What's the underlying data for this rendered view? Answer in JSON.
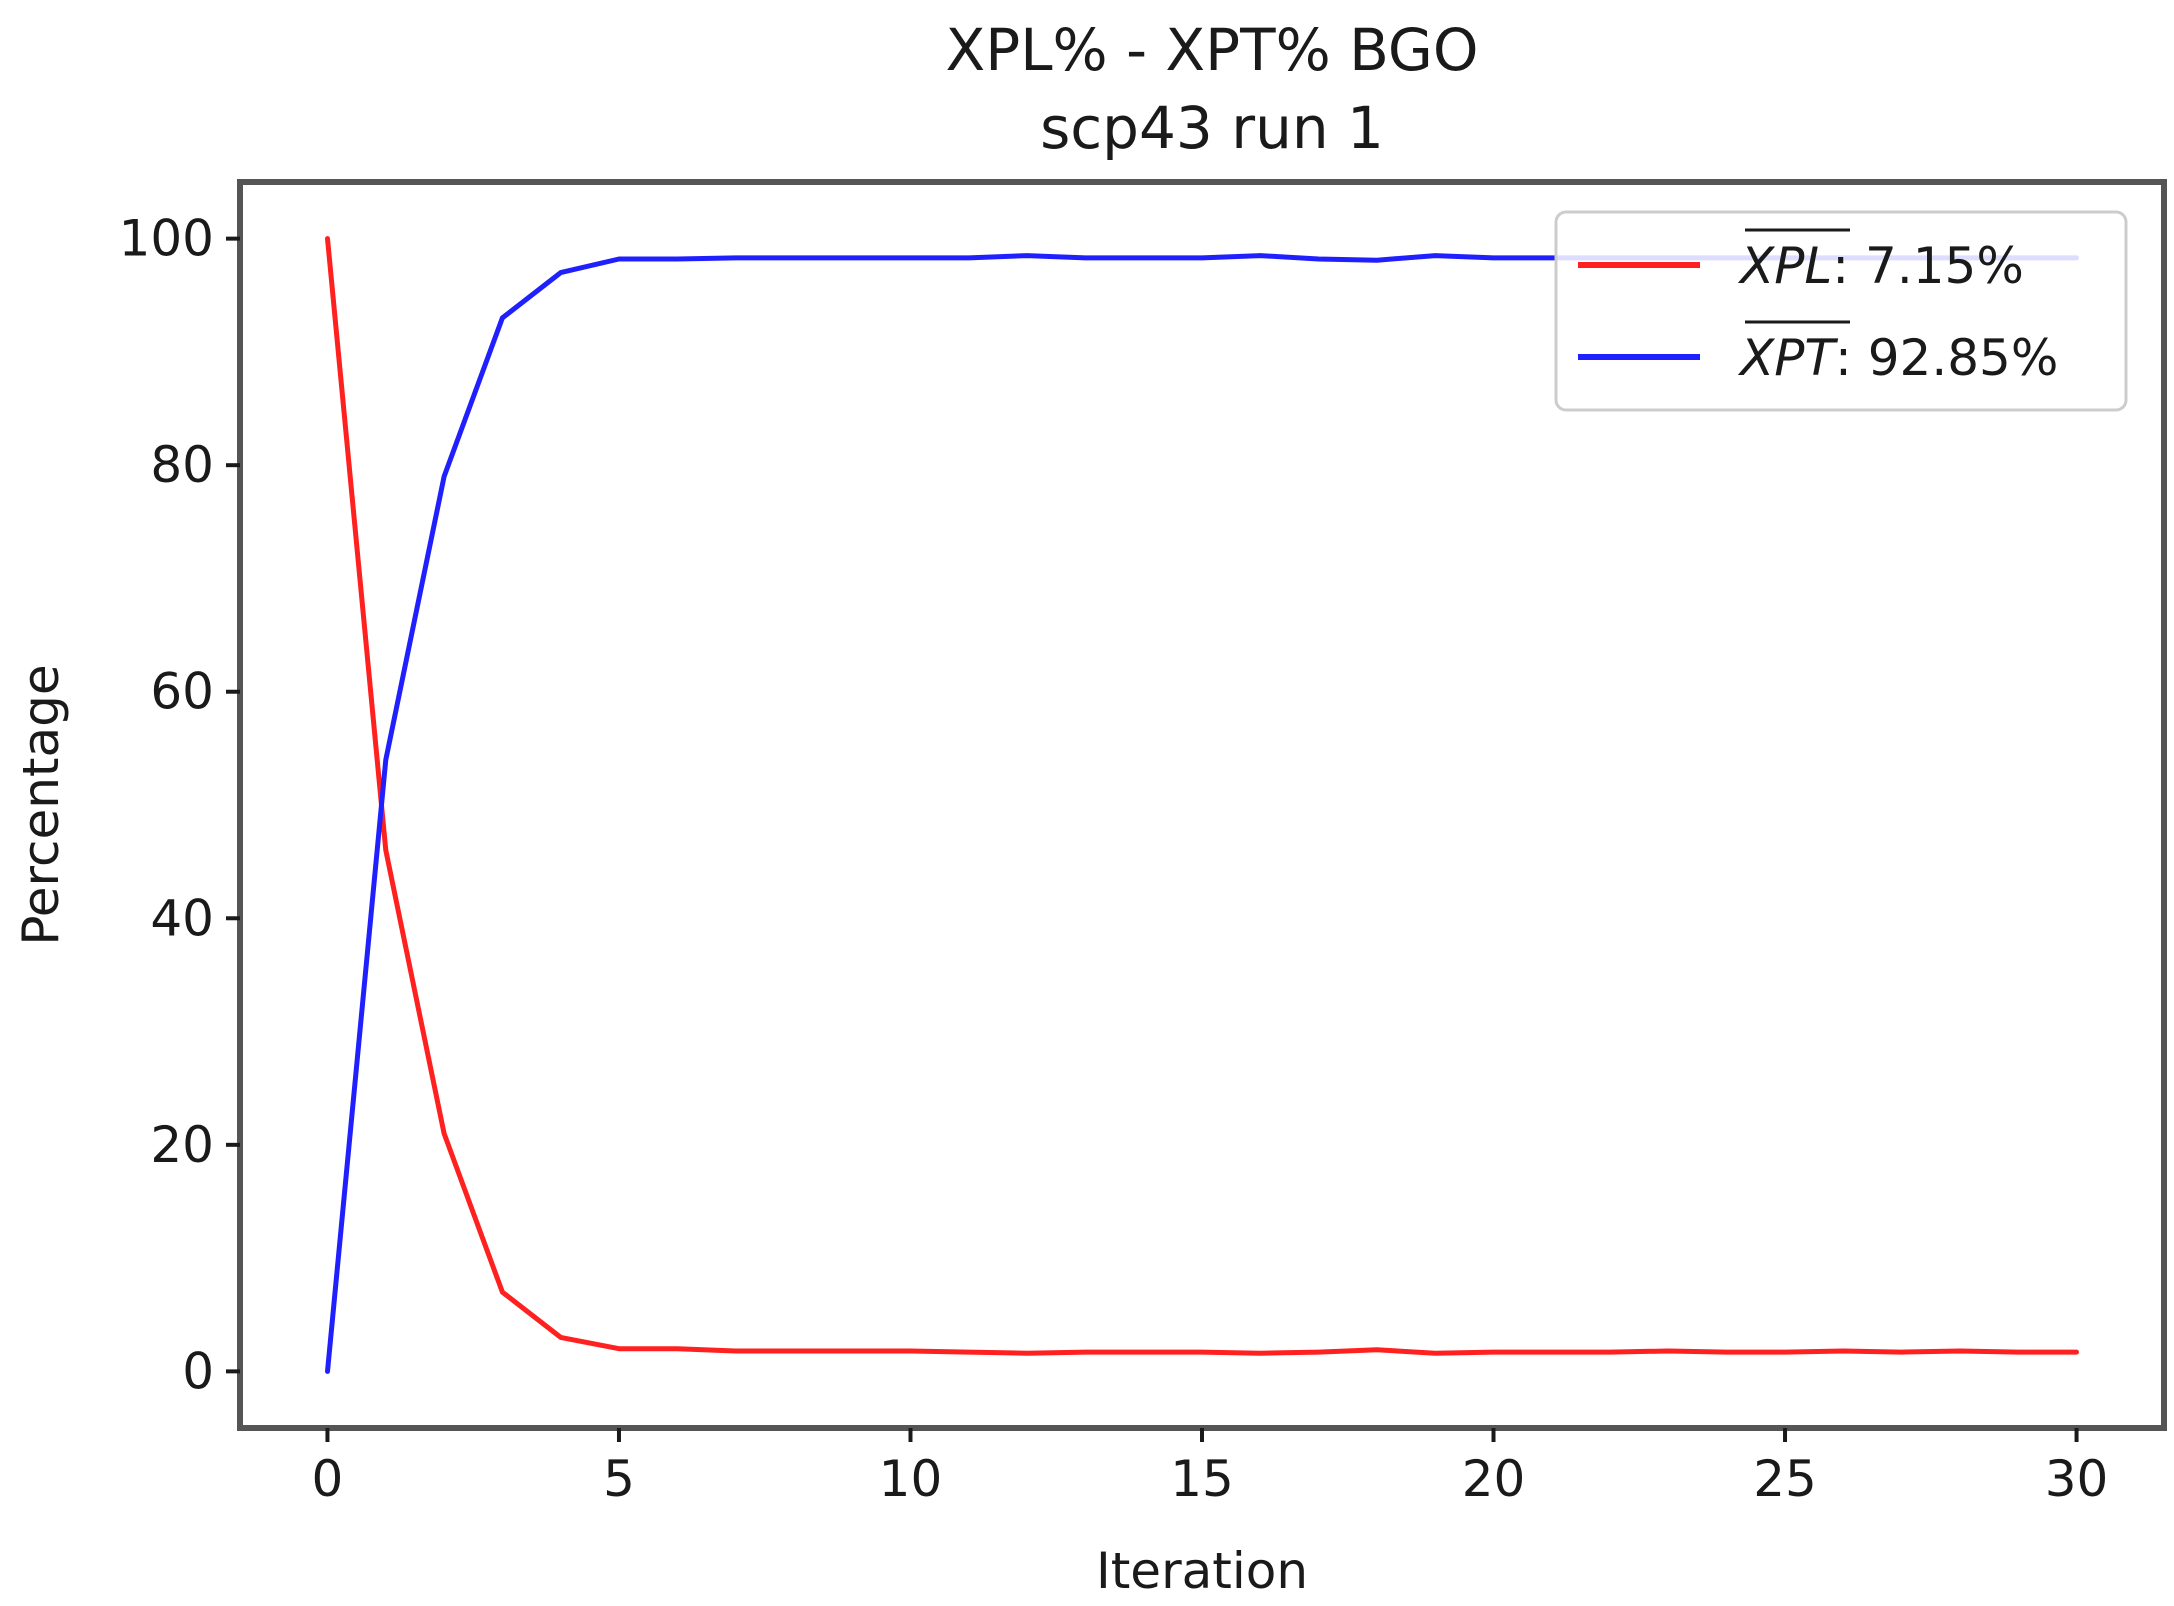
{
  "chart_data": {
    "type": "line",
    "title": "XPL% - XPT% BGO",
    "subtitle": "scp43 run 1",
    "xlabel": "Iteration",
    "ylabel": "Percentage",
    "xlim": [
      -1.5,
      31.5
    ],
    "ylim": [
      -5,
      105
    ],
    "xticks": [
      0,
      5,
      10,
      15,
      20,
      25,
      30
    ],
    "yticks": [
      0,
      20,
      40,
      60,
      80,
      100
    ],
    "grid": false,
    "legend_position": "top-right",
    "x": [
      0,
      1,
      2,
      3,
      4,
      5,
      6,
      7,
      8,
      9,
      10,
      11,
      12,
      13,
      14,
      15,
      16,
      17,
      18,
      19,
      20,
      21,
      22,
      23,
      24,
      25,
      26,
      27,
      28,
      29,
      30
    ],
    "series": [
      {
        "name": "XPL",
        "legend_value": ": 7.15%",
        "color": "#ff2020",
        "values": [
          100,
          46,
          21,
          7,
          3,
          2,
          2,
          1.8,
          1.8,
          1.8,
          1.8,
          1.7,
          1.6,
          1.7,
          1.7,
          1.7,
          1.6,
          1.7,
          1.9,
          1.6,
          1.7,
          1.7,
          1.7,
          1.8,
          1.7,
          1.7,
          1.8,
          1.7,
          1.8,
          1.7,
          1.7
        ]
      },
      {
        "name": "XPT",
        "legend_value": ": 92.85%",
        "color": "#2020ff",
        "values": [
          0,
          54,
          79,
          93,
          97,
          98.2,
          98.2,
          98.3,
          98.3,
          98.3,
          98.3,
          98.3,
          98.5,
          98.3,
          98.3,
          98.3,
          98.5,
          98.2,
          98.1,
          98.5,
          98.3,
          98.3,
          98.3,
          98.3,
          98.3,
          98.3,
          98.3,
          98.3,
          98.3,
          98.3,
          98.3
        ]
      }
    ]
  }
}
